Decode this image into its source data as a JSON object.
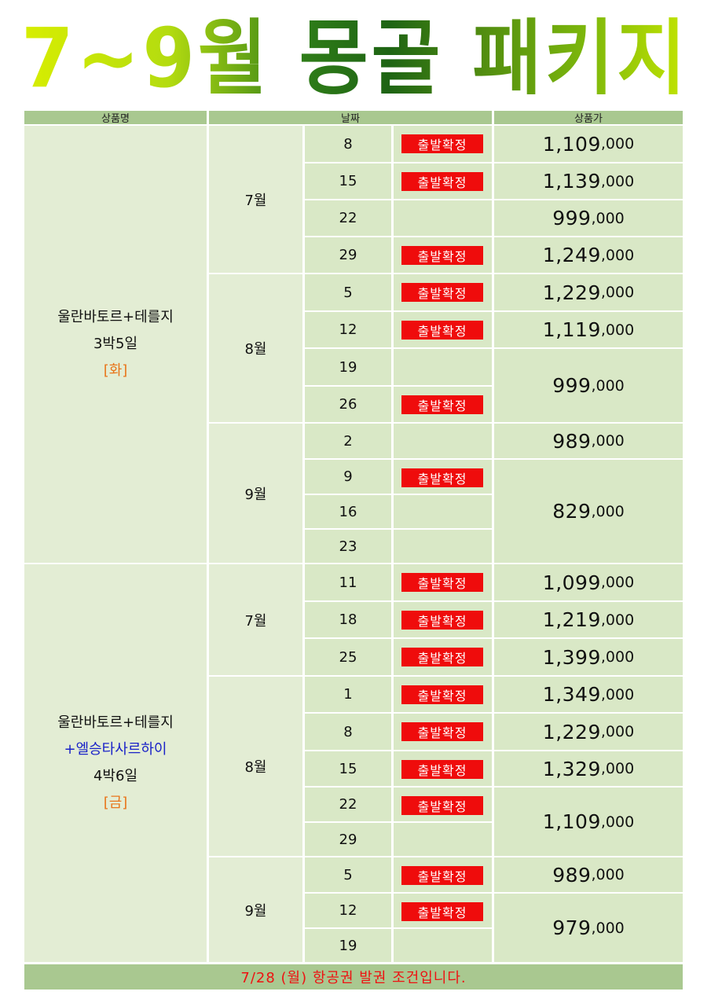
{
  "title": "7~9월 몽골 패키지",
  "header": {
    "product": "상품명",
    "date": "날짜",
    "price": "상품가"
  },
  "badge_text": "출발확정",
  "products": [
    {
      "name": "울란바토르+테를지",
      "duration": "3박5일",
      "weekday": "[화]"
    },
    {
      "name": "울란바토르+테를지",
      "extra": "+엘승타사르하이",
      "duration": "4박6일",
      "weekday": "[금]"
    }
  ],
  "months": [
    "7월",
    "8월",
    "9월",
    "7월",
    "8월",
    "9월"
  ],
  "rows": [
    {
      "day": "8",
      "confirmed": true
    },
    {
      "day": "15",
      "confirmed": true
    },
    {
      "day": "22",
      "confirmed": false
    },
    {
      "day": "29",
      "confirmed": true
    },
    {
      "day": "5",
      "confirmed": true
    },
    {
      "day": "12",
      "confirmed": true
    },
    {
      "day": "19",
      "confirmed": false
    },
    {
      "day": "26",
      "confirmed": true
    },
    {
      "day": "2",
      "confirmed": false
    },
    {
      "day": "9",
      "confirmed": true
    },
    {
      "day": "16",
      "confirmed": false
    },
    {
      "day": "23",
      "confirmed": false
    },
    {
      "day": "11",
      "confirmed": true
    },
    {
      "day": "18",
      "confirmed": true
    },
    {
      "day": "25",
      "confirmed": true
    },
    {
      "day": "1",
      "confirmed": true
    },
    {
      "day": "8",
      "confirmed": true
    },
    {
      "day": "15",
      "confirmed": true
    },
    {
      "day": "22",
      "confirmed": true
    },
    {
      "day": "29",
      "confirmed": false
    },
    {
      "day": "5",
      "confirmed": true
    },
    {
      "day": "12",
      "confirmed": true
    },
    {
      "day": "19",
      "confirmed": false
    }
  ],
  "prices": [
    {
      "main": "1,109",
      "tail": ",000"
    },
    {
      "main": "1,139",
      "tail": ",000"
    },
    {
      "main": "999",
      "tail": ",000"
    },
    {
      "main": "1,249",
      "tail": ",000"
    },
    {
      "main": "1,229",
      "tail": ",000"
    },
    {
      "main": "1,119",
      "tail": ",000"
    },
    {
      "main": "999",
      "tail": ",000"
    },
    {
      "main": "989",
      "tail": ",000"
    },
    {
      "main": "829",
      "tail": ",000"
    },
    {
      "main": "1,099",
      "tail": ",000"
    },
    {
      "main": "1,219",
      "tail": ",000"
    },
    {
      "main": "1,399",
      "tail": ",000"
    },
    {
      "main": "1,349",
      "tail": ",000"
    },
    {
      "main": "1,229",
      "tail": ",000"
    },
    {
      "main": "1,329",
      "tail": ",000"
    },
    {
      "main": "1,109",
      "tail": ",000"
    },
    {
      "main": "989",
      "tail": ",000"
    },
    {
      "main": "979",
      "tail": ",000"
    }
  ],
  "footer": "7/28 (월) 항공권 발권 조건입니다.",
  "colors": {
    "title_light": "#d8f000",
    "title_dark": "#1e6e14",
    "badge": "#ef0c0c",
    "header": "#a9c890",
    "cell": "#d9e8c6",
    "footer_text": "#ee1111"
  }
}
